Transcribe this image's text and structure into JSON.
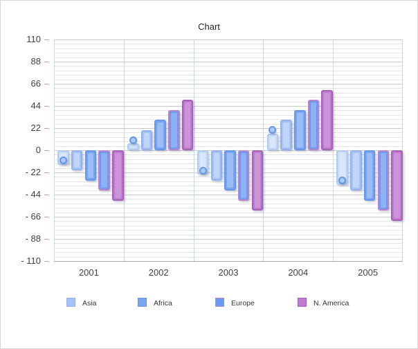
{
  "chart_data": {
    "type": "bar",
    "title": "Chart",
    "categories": [
      "2001",
      "2002",
      "2003",
      "2004",
      "2005"
    ],
    "series": [
      {
        "name": "",
        "in_legend": false,
        "marker": "circle",
        "values": [
          -10,
          10,
          -20,
          20,
          -30
        ],
        "fill": "#c9dcf8",
        "border": "#aecbf4",
        "inner": "#dae7fb",
        "marker_fill": "#aac9f3",
        "marker_border": "#5f97e4"
      },
      {
        "name": "Asia",
        "in_legend": true,
        "values": [
          -20,
          20,
          -30,
          30,
          -40
        ],
        "fill": "#a6c3f3",
        "border": "#90b3ee",
        "inner": "#c0d5f8"
      },
      {
        "name": "Africa",
        "in_legend": true,
        "values": [
          -30,
          30,
          -40,
          40,
          -50
        ],
        "fill": "#7aa6ef",
        "border": "#6297ec",
        "inner": "#9bbcf4"
      },
      {
        "name": "Europe",
        "in_legend": true,
        "values": [
          -40,
          40,
          -50,
          50,
          -60
        ],
        "fill": "#6b9af0",
        "border": "#bc83cb",
        "inner": "#8db1f4"
      },
      {
        "name": "N. America",
        "in_legend": true,
        "values": [
          -50,
          50,
          -60,
          60,
          -70
        ],
        "fill": "#bd7ccc",
        "border": "#a75fb9",
        "inner": "#cb93d8"
      }
    ],
    "ylim": [
      -110,
      110
    ],
    "yticks": [
      110,
      88,
      66,
      44,
      22,
      0,
      -22,
      -44,
      -66,
      -88,
      -110
    ],
    "ytick_labels": [
      "110",
      "88",
      "66",
      "44",
      "22",
      "0",
      "- 22",
      "- 44",
      "- 66",
      "- 88",
      "- 110"
    ],
    "minor_gridlines_per_major": 4,
    "grid": true,
    "legend_position": "bottom"
  },
  "colors": {
    "major_gridline": "#c9c9cd",
    "minor_gridline": "#e4e4e8",
    "vertical_gridline": "#c7d7e6",
    "axis_line": "#a9a9ad",
    "tick": "#b0b0b4",
    "label_text": "#3f3f3f",
    "title_text": "#232323",
    "window_border": "#d5d5dc",
    "background": "#ffffff"
  }
}
